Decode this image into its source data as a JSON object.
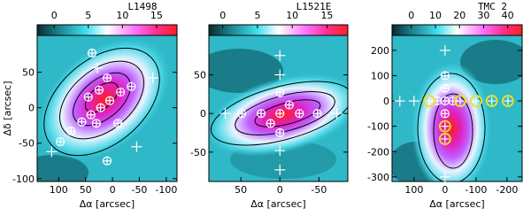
{
  "chart_data": [
    {
      "type": "map",
      "title": "L1498",
      "colorticks": [
        0,
        5,
        10,
        15
      ],
      "colorlim": [
        -2.5,
        18
      ],
      "xlim": [
        140,
        -120
      ],
      "ylim": [
        -104,
        102
      ],
      "xticks": [
        100,
        50,
        0,
        -50,
        -100
      ],
      "yticks": [
        50,
        0,
        -50,
        -100
      ],
      "xlabel": "Δα [arcsec]",
      "ylabel": "Δδ [arcsec]",
      "markers": [
        {
          "style": "circled",
          "color": "#ffffff",
          "x": [
            97,
            77,
            57,
            40,
            22,
            5,
            -15,
            -35,
            25,
            10,
            -10,
            45,
            30,
            10,
            38
          ],
          "y": [
            -48,
            -33,
            -20,
            -10,
            0,
            10,
            22,
            30,
            25,
            42,
            -22,
            15,
            -22,
            -75,
            77
          ]
        },
        {
          "style": "cross",
          "color": "#ffffff",
          "x": [
            113,
            28,
            -75,
            -45
          ],
          "y": [
            -62,
            56,
            42,
            -55
          ]
        }
      ]
    },
    {
      "type": "map",
      "title": "L1521E",
      "colorticks": [
        0,
        5,
        10,
        15
      ],
      "colorlim": [
        -2,
        18
      ],
      "xlim": [
        91,
        -87
      ],
      "ylim": [
        -88,
        101
      ],
      "xticks": [
        50,
        0,
        -50
      ],
      "yticks": [
        50,
        0,
        -50
      ],
      "xlabel": "Δα [arcsec]",
      "markers": [
        {
          "style": "circled",
          "color": "#ffffff",
          "x": [
            0,
            0,
            0,
            49,
            24,
            -25,
            -48,
            -12,
            12
          ],
          "y": [
            27,
            0,
            -25,
            0,
            0,
            0,
            0,
            11,
            -13
          ]
        },
        {
          "style": "cross",
          "color": "#ffffff",
          "x": [
            0,
            0,
            0,
            0,
            70,
            -73
          ],
          "y": [
            75,
            50,
            -48,
            -73,
            0,
            0
          ]
        }
      ]
    },
    {
      "type": "map",
      "title": "TMC 2",
      "colorticks": [
        0,
        10,
        20,
        30,
        40
      ],
      "colorlim": [
        -8,
        46
      ],
      "xlim": [
        171,
        -249
      ],
      "ylim": [
        -318,
        259
      ],
      "xticks": [
        100,
        0,
        -100,
        -200
      ],
      "yticks": [
        200,
        100,
        0,
        -100,
        -200,
        -300
      ],
      "xlabel": "Δα [arcsec]",
      "markers": [
        {
          "style": "circled",
          "color": "#ffffff",
          "x": [
            0,
            0,
            0,
            0,
            25,
            -25
          ],
          "y": [
            100,
            50,
            0,
            -50,
            0,
            0
          ]
        },
        {
          "style": "circled",
          "color": "#f0e020",
          "x": [
            51,
            -49,
            -100,
            -151,
            -203,
            0,
            0
          ],
          "y": [
            0,
            0,
            0,
            0,
            0,
            -100,
            -150
          ]
        },
        {
          "style": "cross",
          "color": "#ffffff",
          "x": [
            146,
            100,
            0,
            0
          ],
          "y": [
            0,
            0,
            200,
            -300
          ]
        }
      ]
    }
  ]
}
